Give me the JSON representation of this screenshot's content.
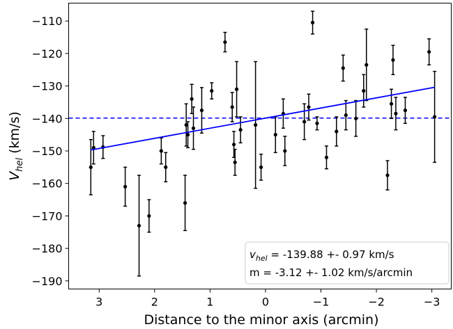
{
  "chart_data": {
    "type": "scatter",
    "xlabel": "Distance to the minor axis (arcmin)",
    "ylabel_main": "V",
    "ylabel_sub": "hel",
    "ylabel_unit": " (km/s)",
    "xlim": [
      3.55,
      -3.35
    ],
    "ylim": [
      -192.5,
      -104.5
    ],
    "x_inverted": true,
    "grid": false,
    "x_ticks": [
      3,
      2,
      1,
      0,
      -1,
      -2,
      -3
    ],
    "x_tick_labels": [
      "3",
      "2",
      "1",
      "0",
      "−1",
      "−2",
      "−3"
    ],
    "y_ticks": [
      -110,
      -120,
      -130,
      -140,
      -150,
      -160,
      -170,
      -180,
      -190
    ],
    "y_tick_labels": [
      "−110",
      "−120",
      "−130",
      "−140",
      "−150",
      "−160",
      "−170",
      "−180",
      "−190"
    ],
    "hline": {
      "y": -139.88,
      "color": "#0000ff",
      "style": "dashed"
    },
    "fit_line": {
      "x": [
        3.15,
        -3.05
      ],
      "y": [
        -149.7,
        -130.4
      ],
      "color": "#0000ff"
    },
    "point_color": "#000000",
    "points": [
      {
        "x": 3.15,
        "y": -155.0,
        "err": 8.5
      },
      {
        "x": 3.1,
        "y": -149.0,
        "err": 5.0
      },
      {
        "x": 2.93,
        "y": -148.8,
        "err": 3.5
      },
      {
        "x": 2.53,
        "y": -161.0,
        "err": 6.0
      },
      {
        "x": 2.28,
        "y": -173.0,
        "err": 15.5
      },
      {
        "x": 2.1,
        "y": -170.0,
        "err": 5.0
      },
      {
        "x": 1.88,
        "y": -150.0,
        "err": 4.0
      },
      {
        "x": 1.8,
        "y": -155.0,
        "err": 4.5
      },
      {
        "x": 1.45,
        "y": -166.0,
        "err": 8.5
      },
      {
        "x": 1.43,
        "y": -142.0,
        "err": 6.5
      },
      {
        "x": 1.4,
        "y": -145.0,
        "err": 4.0
      },
      {
        "x": 1.33,
        "y": -134.0,
        "err": 4.5
      },
      {
        "x": 1.3,
        "y": -143.0,
        "err": 6.5
      },
      {
        "x": 1.15,
        "y": -137.5,
        "err": 7.0
      },
      {
        "x": 0.97,
        "y": -131.5,
        "err": 2.5
      },
      {
        "x": 0.73,
        "y": -116.5,
        "err": 3.0
      },
      {
        "x": 0.6,
        "y": -136.5,
        "err": 4.5
      },
      {
        "x": 0.57,
        "y": -148.0,
        "err": 4.0
      },
      {
        "x": 0.55,
        "y": -153.5,
        "err": 4.0
      },
      {
        "x": 0.52,
        "y": -131.0,
        "err": 8.5
      },
      {
        "x": 0.45,
        "y": -143.5,
        "err": 4.0
      },
      {
        "x": 0.18,
        "y": -142.0,
        "err": 19.5
      },
      {
        "x": 0.08,
        "y": -155.0,
        "err": 4.0
      },
      {
        "x": -0.18,
        "y": -145.0,
        "err": 5.5
      },
      {
        "x": -0.32,
        "y": -138.5,
        "err": 4.5
      },
      {
        "x": -0.35,
        "y": -150.0,
        "err": 4.5
      },
      {
        "x": -0.7,
        "y": -141.0,
        "err": 5.5
      },
      {
        "x": -0.78,
        "y": -136.5,
        "err": 4.0
      },
      {
        "x": -0.85,
        "y": -110.5,
        "err": 3.5
      },
      {
        "x": -0.93,
        "y": -141.5,
        "err": 2.0
      },
      {
        "x": -1.1,
        "y": -152.0,
        "err": 3.5
      },
      {
        "x": -1.28,
        "y": -144.0,
        "err": 4.5
      },
      {
        "x": -1.4,
        "y": -124.5,
        "err": 4.0
      },
      {
        "x": -1.45,
        "y": -139.0,
        "err": 4.5
      },
      {
        "x": -1.63,
        "y": -140.0,
        "err": 5.5
      },
      {
        "x": -1.77,
        "y": -131.5,
        "err": 5.0
      },
      {
        "x": -1.82,
        "y": -123.5,
        "err": 11.0
      },
      {
        "x": -2.2,
        "y": -157.5,
        "err": 4.5
      },
      {
        "x": -2.27,
        "y": -135.5,
        "err": 4.5
      },
      {
        "x": -2.3,
        "y": -122.0,
        "err": 4.5
      },
      {
        "x": -2.35,
        "y": -138.5,
        "err": 5.0
      },
      {
        "x": -2.52,
        "y": -137.5,
        "err": 4.0
      },
      {
        "x": -2.95,
        "y": -119.5,
        "err": 4.0
      },
      {
        "x": -3.05,
        "y": -139.5,
        "err": 14.0
      }
    ],
    "legend": {
      "placement": "lower-right",
      "line1_main": "v",
      "line1_sub": "hel",
      "line1_rest": " = -139.88 +- 0.97 km/s",
      "line2": "m = -3.12 +- 1.02 km/s/arcmin"
    }
  }
}
